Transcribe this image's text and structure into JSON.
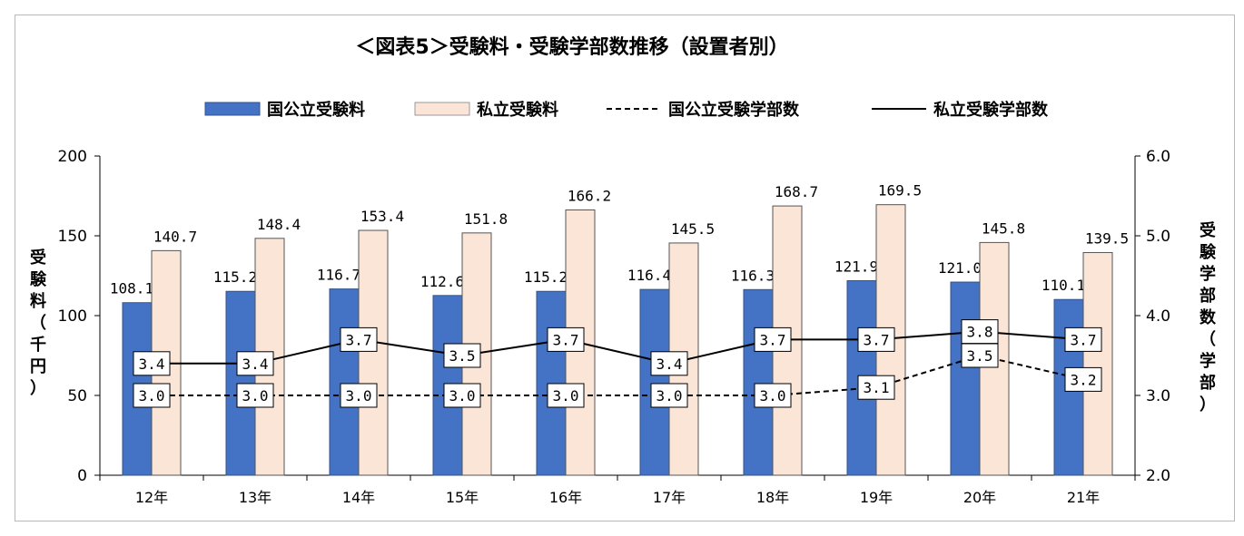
{
  "chart_data": {
    "type": "bar",
    "title": "＜図表5＞受験料・受験学部数推移（設置者別）",
    "categories": [
      "12年",
      "13年",
      "14年",
      "15年",
      "16年",
      "17年",
      "18年",
      "19年",
      "20年",
      "21年"
    ],
    "series": [
      {
        "name": "国公立受験料",
        "kind": "bar",
        "axis": "left",
        "color": "#4472c4",
        "values": [
          108.1,
          115.2,
          116.7,
          112.6,
          115.2,
          116.4,
          116.3,
          121.9,
          121.0,
          110.1
        ]
      },
      {
        "name": "私立受験料",
        "kind": "bar",
        "axis": "left",
        "color": "#fbe5d6",
        "values": [
          140.7,
          148.4,
          153.4,
          151.8,
          166.2,
          145.5,
          168.7,
          169.5,
          145.8,
          139.5
        ]
      },
      {
        "name": "国公立受験学部数",
        "kind": "line",
        "style": "dashed",
        "axis": "right",
        "color": "#000000",
        "values": [
          3.0,
          3.0,
          3.0,
          3.0,
          3.0,
          3.0,
          3.0,
          3.1,
          3.5,
          3.2
        ]
      },
      {
        "name": "私立受験学部数",
        "kind": "line",
        "style": "solid",
        "axis": "right",
        "color": "#000000",
        "values": [
          3.4,
          3.4,
          3.7,
          3.5,
          3.7,
          3.4,
          3.7,
          3.7,
          3.8,
          3.7
        ]
      }
    ],
    "ylabel": "受験料（千円）",
    "y2label": "受験学部数（学部）",
    "ylim": [
      0,
      200
    ],
    "y2lim": [
      2.0,
      6.0
    ],
    "yticks": [
      "0",
      "50",
      "100",
      "150",
      "200"
    ],
    "y2ticks": [
      "2.0",
      "3.0",
      "4.0",
      "5.0",
      "6.0"
    ],
    "grid": false,
    "legend_position": "top"
  }
}
